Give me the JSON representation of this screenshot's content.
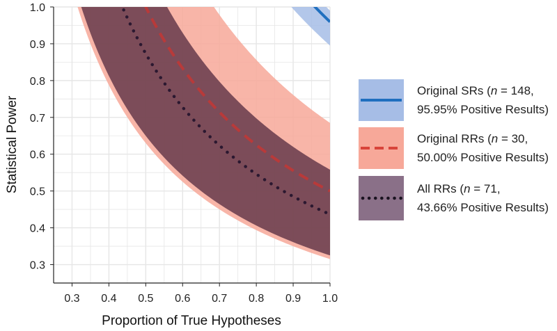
{
  "chart_data": {
    "type": "area",
    "title": "",
    "xlabel": "Proportion of True Hypotheses",
    "ylabel": "Statistical Power",
    "xlim": [
      0.25,
      1.0
    ],
    "ylim": [
      0.25,
      1.0
    ],
    "xticks": [
      0.3,
      0.4,
      0.5,
      0.6,
      0.7,
      0.8,
      0.9,
      1.0
    ],
    "yticks": [
      0.3,
      0.4,
      0.5,
      0.6,
      0.7,
      0.8,
      0.9,
      1.0
    ],
    "xtick_labels": [
      "0.3",
      "0.4",
      "0.5",
      "0.6",
      "0.7",
      "0.8",
      "0.9",
      "1.0"
    ],
    "ytick_labels": [
      "0.3",
      "0.4",
      "0.5",
      "0.6",
      "0.7",
      "0.8",
      "0.9",
      "1.0"
    ],
    "grid": true,
    "legend_position": "right",
    "series": [
      {
        "name": "Original SRs",
        "legend_main": "Original SRs (",
        "legend_n": "n",
        "legend_rest": " = 148,",
        "legend_line2": "95.95% Positive Results)",
        "positive_rate": 0.9595,
        "band_low_rate": 0.895,
        "band_high_rate": 0.99,
        "line_style": "solid",
        "line_color": "#1f6fbf",
        "band_color": "#a6bde6"
      },
      {
        "name": "Original RRs",
        "legend_main": "Original RRs (",
        "legend_n": "n",
        "legend_rest": " = 30,",
        "legend_line2": "50.00% Positive Results)",
        "positive_rate": 0.5,
        "band_low_rate": 0.315,
        "band_high_rate": 0.685,
        "line_style": "dashed",
        "line_color": "#b83a3a",
        "band_color": "#f7a899"
      },
      {
        "name": "All RRs",
        "legend_main": "All RRs (",
        "legend_n": "n",
        "legend_rest": " = 71,",
        "legend_line2": "43.66% Positive Results)",
        "positive_rate": 0.4366,
        "band_low_rate": 0.325,
        "band_high_rate": 0.558,
        "line_style": "dotted",
        "line_color": "#2b1830",
        "band_color": "#5c3245"
      }
    ]
  }
}
